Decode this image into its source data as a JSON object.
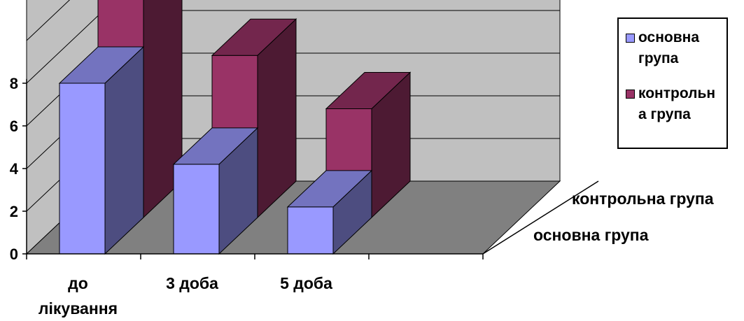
{
  "chart_data": {
    "type": "bar",
    "title": "",
    "categories": [
      "до лікування",
      "3 доба",
      "5 доба"
    ],
    "category_label_lines": [
      [
        "до",
        "лікування"
      ],
      [
        "3 доба"
      ],
      [
        "5 доба"
      ]
    ],
    "series": [
      {
        "name": "основна група",
        "legend_lines": [
          "основна",
          "група"
        ],
        "values": [
          8,
          4.2,
          2.2
        ],
        "color": "#9999FF"
      },
      {
        "name": "контрольна група",
        "legend_lines": [
          "контрольн",
          "а група"
        ],
        "values": [
          11.5,
          7.6,
          5.1
        ],
        "color": "#993366"
      }
    ],
    "depth_labels": [
      "контрольна група",
      "основна група"
    ],
    "y_ticks": [
      0,
      2,
      4,
      6,
      8
    ],
    "ylim": [
      0,
      12
    ],
    "grid": true,
    "legend_position": "right"
  }
}
